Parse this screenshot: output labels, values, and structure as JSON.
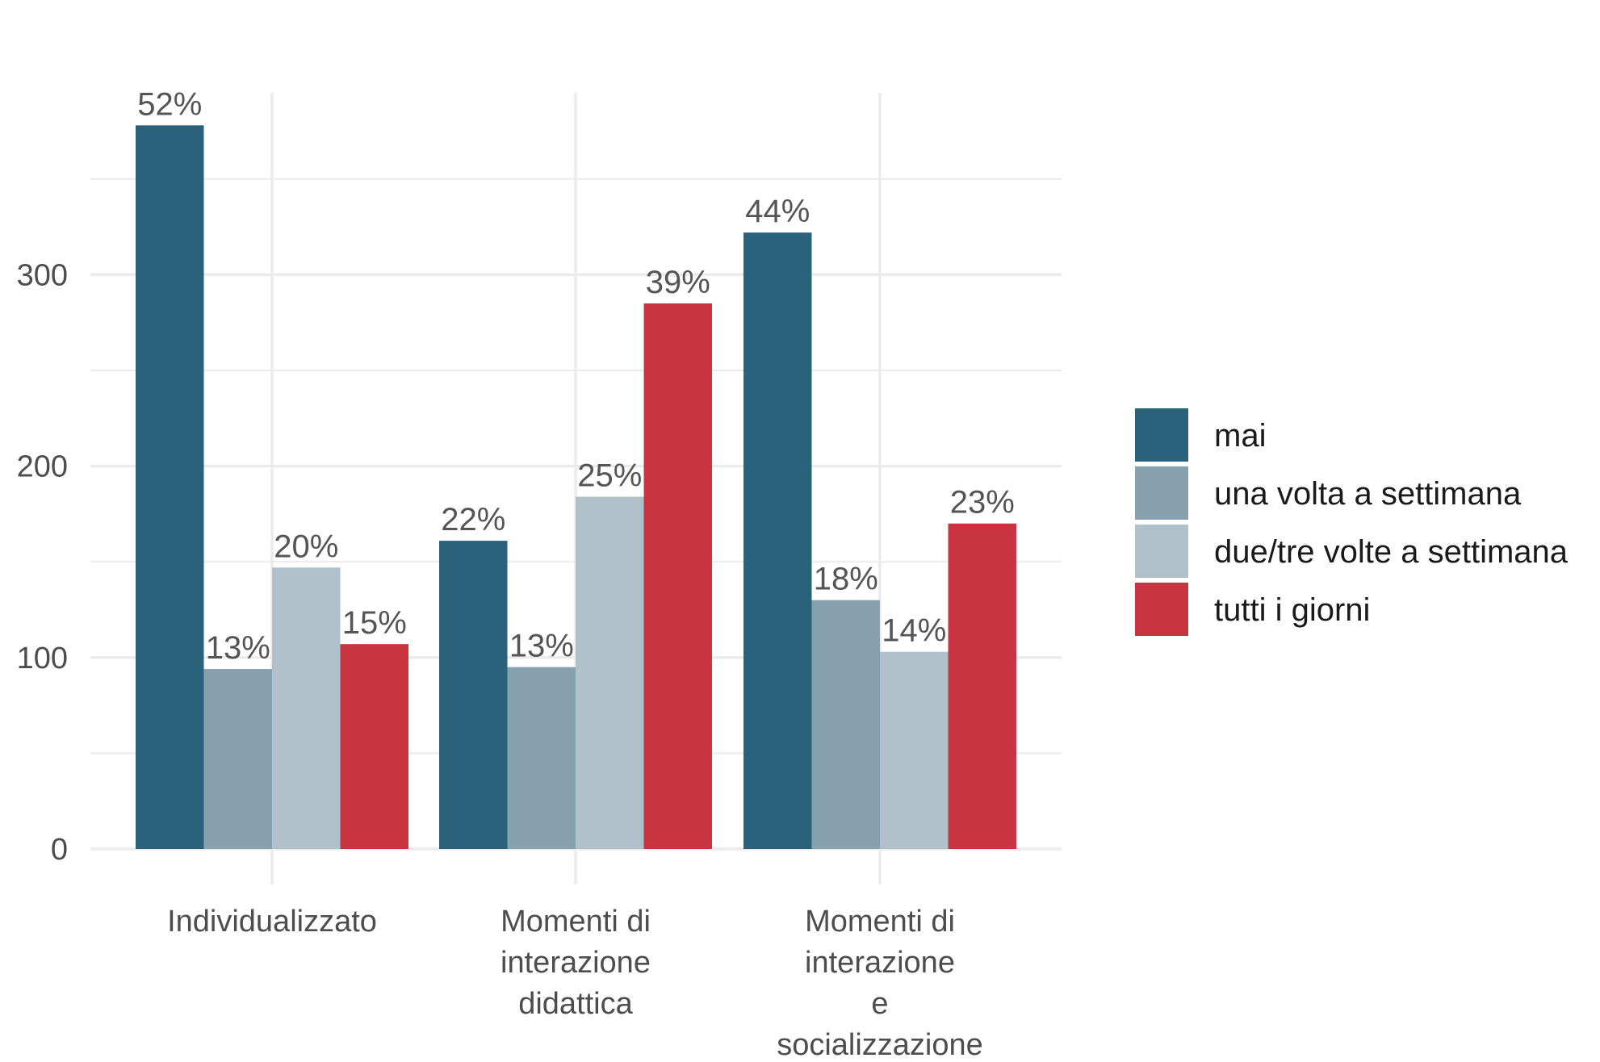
{
  "chart_data": {
    "type": "bar",
    "categories": [
      [
        "Individualizzato"
      ],
      [
        "Momenti di",
        "interazione",
        "didattica"
      ],
      [
        "Momenti di",
        "interazione",
        "e",
        "socializzazione"
      ]
    ],
    "series": [
      {
        "name": "mai",
        "color": "#2a627b",
        "values": [
          378,
          161,
          322
        ],
        "labels": [
          "52%",
          "22%",
          "44%"
        ]
      },
      {
        "name": "una volta a settimana",
        "color": "#87a1af",
        "values": [
          94,
          95,
          130
        ],
        "labels": [
          "13%",
          "13%",
          "18%"
        ]
      },
      {
        "name": "due/tre volte a settimana",
        "color": "#b0c1cb",
        "values": [
          147,
          184,
          103
        ],
        "labels": [
          "20%",
          "25%",
          "14%"
        ]
      },
      {
        "name": "tutti i giorni",
        "color": "#c83440",
        "values": [
          107,
          285,
          170
        ],
        "labels": [
          "15%",
          "39%",
          "23%"
        ]
      }
    ],
    "yticks": [
      0,
      100,
      200,
      300
    ],
    "ylim": [
      0,
      395
    ],
    "grid": true,
    "legend_position": "right"
  }
}
